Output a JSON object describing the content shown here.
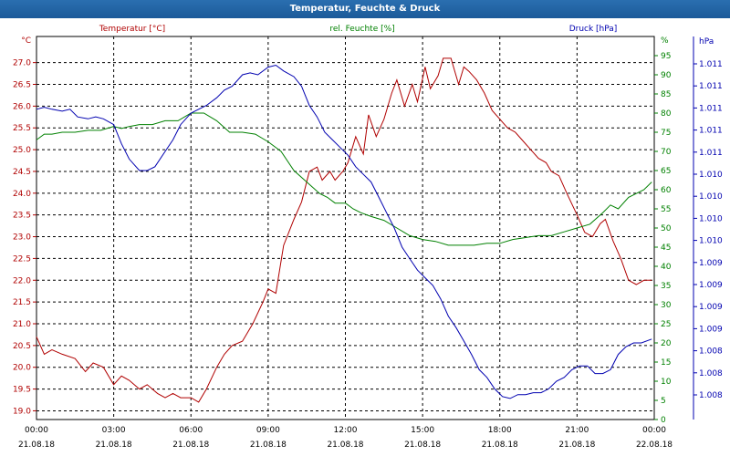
{
  "title": "Temperatur, Feuchte & Druck",
  "chart_data": {
    "type": "line",
    "title": "Temperatur, Feuchte & Druck",
    "x_ticks": [
      {
        "time": "00:00",
        "date": "21.08.18"
      },
      {
        "time": "03:00",
        "date": "21.08.18"
      },
      {
        "time": "06:00",
        "date": "21.08.18"
      },
      {
        "time": "09:00",
        "date": "21.08.18"
      },
      {
        "time": "12:00",
        "date": "21.08.18"
      },
      {
        "time": "15:00",
        "date": "21.08.18"
      },
      {
        "time": "18:00",
        "date": "21.08.18"
      },
      {
        "time": "21:00",
        "date": "21.08.18"
      },
      {
        "time": "00:00",
        "date": "22.08.18"
      }
    ],
    "x_range_hours": [
      0,
      24
    ],
    "grid": true,
    "axes": {
      "temp": {
        "label": "Temperatur [°C]",
        "unit": "°C",
        "color": "#b00000",
        "range": [
          18.8,
          27.6
        ],
        "ticks": [
          "27.0",
          "26.5",
          "26.0",
          "25.5",
          "25.0",
          "24.5",
          "24.0",
          "23.5",
          "23.0",
          "22.5",
          "22.0",
          "21.5",
          "21.0",
          "20.5",
          "20.0",
          "19.5",
          "19.0"
        ]
      },
      "hum": {
        "label": "rel. Feuchte [%]",
        "unit": "%",
        "color": "#008000",
        "range": [
          0,
          100
        ],
        "ticks": [
          "0",
          "5",
          "10",
          "15",
          "20",
          "25",
          "30",
          "35",
          "40",
          "45",
          "50",
          "55",
          "60",
          "65",
          "70",
          "75",
          "80",
          "85",
          "90",
          "95"
        ]
      },
      "press": {
        "label": "Druck [hPa]",
        "unit": "hPa",
        "color": "#0000b0",
        "tick_labels": [
          "1.011",
          "1.011",
          "1.011",
          "1.011",
          "1.011",
          "1.010",
          "1.010",
          "1.010",
          "1.010",
          "1.009",
          "1.009",
          "1.009",
          "1.009",
          "1.008",
          "1.008",
          "1.008"
        ]
      }
    },
    "series": [
      {
        "name": "Temperatur [°C]",
        "axis": "temp",
        "color": "#b00000",
        "x": [
          0,
          0.3,
          0.6,
          1,
          1.5,
          1.9,
          2.2,
          2.6,
          3,
          3.3,
          3.6,
          4,
          4.3,
          4.7,
          5,
          5.3,
          5.6,
          6,
          6.3,
          6.6,
          7,
          7.3,
          7.6,
          8,
          8.4,
          8.8,
          9,
          9.3,
          9.6,
          10,
          10.3,
          10.6,
          10.9,
          11.1,
          11.4,
          11.6,
          11.9,
          12.1,
          12.4,
          12.7,
          12.9,
          13.2,
          13.5,
          13.8,
          14,
          14.3,
          14.6,
          14.8,
          15.1,
          15.3,
          15.6,
          15.8,
          16.1,
          16.4,
          16.6,
          16.8,
          17.1,
          17.4,
          17.7,
          18,
          18.3,
          18.6,
          18.9,
          19.2,
          19.5,
          19.8,
          20,
          20.3,
          20.6,
          21,
          21.3,
          21.6,
          21.9,
          22.1,
          22.4,
          22.7,
          23,
          23.3,
          23.6,
          23.9
        ],
        "y": [
          20.7,
          20.3,
          20.4,
          20.3,
          20.2,
          19.9,
          20.1,
          20.0,
          19.6,
          19.8,
          19.7,
          19.5,
          19.6,
          19.4,
          19.3,
          19.4,
          19.3,
          19.3,
          19.2,
          19.5,
          20.0,
          20.3,
          20.5,
          20.6,
          21.0,
          21.5,
          21.8,
          21.7,
          22.8,
          23.4,
          23.8,
          24.5,
          24.6,
          24.3,
          24.5,
          24.3,
          24.5,
          24.7,
          25.3,
          24.9,
          25.8,
          25.3,
          25.7,
          26.3,
          26.6,
          26.0,
          26.5,
          26.1,
          26.9,
          26.4,
          26.7,
          27.1,
          27.1,
          26.5,
          26.9,
          26.8,
          26.6,
          26.3,
          25.9,
          25.7,
          25.5,
          25.4,
          25.2,
          25.0,
          24.8,
          24.7,
          24.5,
          24.4,
          24.0,
          23.5,
          23.1,
          23.0,
          23.3,
          23.4,
          22.9,
          22.5,
          22.0,
          21.9,
          22.0,
          22.0
        ]
      },
      {
        "name": "rel. Feuchte [%]",
        "axis": "hum",
        "color": "#008000",
        "x": [
          0,
          0.3,
          0.6,
          1,
          1.5,
          2,
          2.5,
          3,
          3.3,
          3.6,
          4,
          4.5,
          5,
          5.5,
          6,
          6.5,
          7,
          7.5,
          8,
          8.5,
          9,
          9.5,
          10,
          10.5,
          11,
          11.3,
          11.6,
          12,
          12.3,
          12.6,
          13,
          13.5,
          14,
          14.5,
          15,
          15.5,
          16,
          16.5,
          17,
          17.5,
          18,
          18.5,
          19,
          19.5,
          20,
          20.5,
          21,
          21.5,
          22,
          22.3,
          22.6,
          23,
          23.3,
          23.6,
          23.9
        ],
        "y": [
          73,
          74.5,
          74.5,
          75,
          75,
          75.5,
          75.5,
          76.5,
          76,
          76.5,
          77,
          77,
          78,
          78,
          80,
          80,
          78,
          75,
          75,
          74.5,
          72.5,
          70,
          65,
          62,
          59,
          58,
          56.5,
          56.5,
          55,
          54,
          53,
          52,
          50,
          48,
          47,
          46.5,
          45.5,
          45.5,
          45.5,
          46,
          46,
          47,
          47.5,
          48,
          48,
          49,
          50,
          51,
          54,
          56,
          55,
          58,
          59,
          60,
          62
        ]
      },
      {
        "name": "Druck [hPa]",
        "axis": "press",
        "color": "#0000b0",
        "x": [
          0,
          0.3,
          0.6,
          1,
          1.3,
          1.6,
          2,
          2.3,
          2.6,
          3,
          3.3,
          3.6,
          4,
          4.3,
          4.6,
          5,
          5.3,
          5.6,
          6,
          6.3,
          6.6,
          7,
          7.3,
          7.6,
          8,
          8.3,
          8.6,
          9,
          9.3,
          9.6,
          10,
          10.3,
          10.6,
          10.9,
          11.2,
          11.5,
          11.8,
          12.1,
          12.4,
          12.7,
          13,
          13.3,
          13.6,
          13.9,
          14.2,
          14.5,
          14.8,
          15.1,
          15.4,
          15.7,
          16,
          16.3,
          16.6,
          16.9,
          17.2,
          17.5,
          17.8,
          18.1,
          18.4,
          18.7,
          19,
          19.3,
          19.6,
          19.9,
          20.2,
          20.5,
          20.8,
          21.1,
          21.4,
          21.7,
          22,
          22.3,
          22.6,
          22.9,
          23.2,
          23.5,
          23.9
        ],
        "y": [
          81,
          81.5,
          81,
          80.5,
          81,
          79,
          78.5,
          79,
          78.5,
          77,
          72,
          68,
          65,
          65,
          66,
          70,
          73,
          77,
          80,
          81,
          82,
          84,
          86,
          87,
          90,
          90.5,
          90,
          92,
          92.5,
          91,
          89.5,
          87,
          82,
          79,
          75,
          73,
          71,
          69,
          66,
          64,
          62,
          58,
          54,
          50,
          45,
          42,
          39,
          37,
          35,
          31.5,
          27,
          24,
          20.5,
          17,
          13,
          11,
          8,
          6,
          5.5,
          6.5,
          6.5,
          7,
          7,
          8,
          10,
          11,
          13,
          14,
          14,
          12,
          12,
          13,
          17,
          19,
          20,
          20,
          21
        ]
      }
    ]
  }
}
